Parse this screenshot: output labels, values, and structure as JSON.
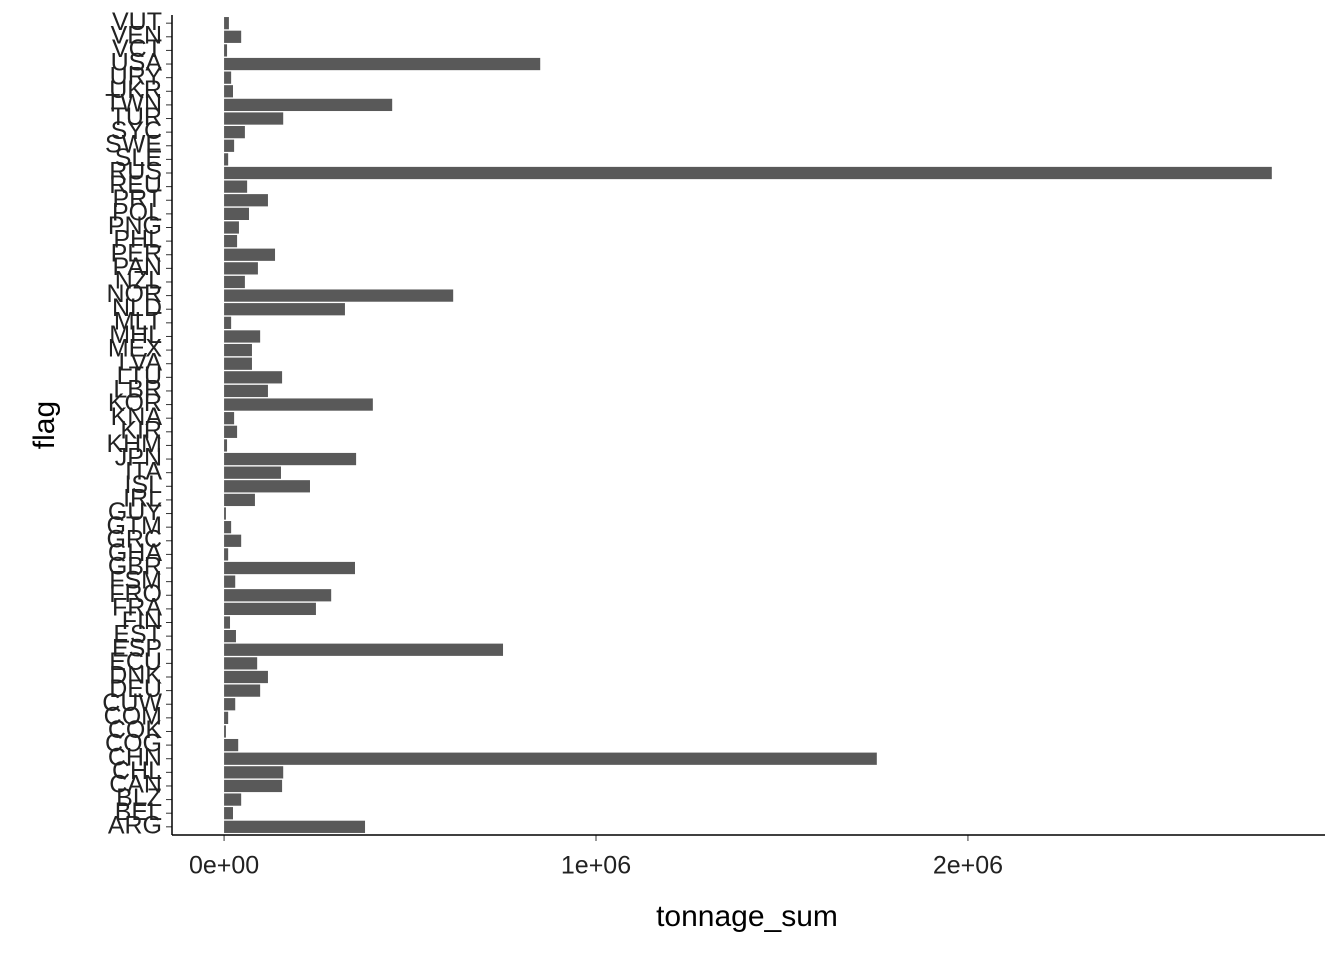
{
  "chart_data": {
    "type": "barh",
    "x_label": "tonnage_sum",
    "y_label": "flag",
    "categories": [
      "ARG",
      "BEL",
      "BLZ",
      "CAN",
      "CHL",
      "CHN",
      "COG",
      "COK",
      "COM",
      "CUW",
      "DEU",
      "DNK",
      "ECU",
      "ESP",
      "EST",
      "FIN",
      "FRA",
      "FRO",
      "FSM",
      "GBR",
      "GHA",
      "GRC",
      "GTM",
      "GUY",
      "IRL",
      "ISL",
      "ITA",
      "JPN",
      "KHM",
      "KIR",
      "KNA",
      "KOR",
      "LBR",
      "LTU",
      "LVA",
      "MEX",
      "MHL",
      "MLT",
      "NLD",
      "NOR",
      "NZL",
      "PAN",
      "PER",
      "PHL",
      "PNG",
      "POL",
      "PRT",
      "REU",
      "RUS",
      "SLE",
      "SWE",
      "SYC",
      "TUR",
      "TWN",
      "UKR",
      "URY",
      "USA",
      "VCT",
      "VEN",
      "VUT"
    ],
    "values": [
      379000,
      24000,
      46000,
      156000,
      159000,
      1755000,
      38000,
      5000,
      11000,
      30000,
      97000,
      118000,
      89000,
      750000,
      32000,
      16000,
      247000,
      288000,
      30000,
      352000,
      11000,
      46000,
      19000,
      5000,
      83000,
      231000,
      153000,
      355000,
      8000,
      35000,
      27000,
      400000,
      118000,
      156000,
      75000,
      75000,
      97000,
      19000,
      325000,
      616000,
      56000,
      91000,
      137000,
      35000,
      40000,
      67000,
      118000,
      62000,
      2817000,
      11000,
      27000,
      56000,
      159000,
      452000,
      24000,
      19000,
      850000,
      8000,
      46000,
      13000
    ],
    "color": "#595959",
    "xlim": [
      -140000,
      2960000
    ],
    "xticks": [
      {
        "value": 0,
        "label": "0e+00"
      },
      {
        "value": 1000000,
        "label": "1e+06"
      },
      {
        "value": 2000000,
        "label": "2e+06"
      }
    ],
    "grid": false
  }
}
